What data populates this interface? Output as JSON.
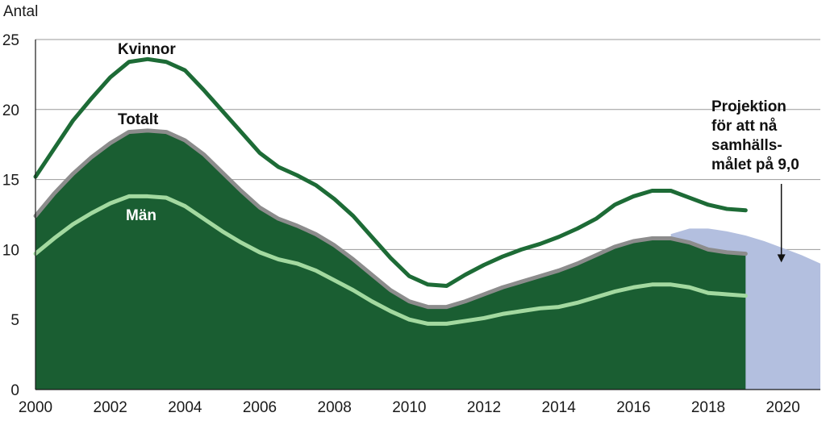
{
  "chart_data": {
    "type": "area",
    "ylabel": "Antal",
    "xlim": [
      2000,
      2021
    ],
    "ylim": [
      0,
      25
    ],
    "y_ticks": [
      0,
      5,
      10,
      15,
      20,
      25
    ],
    "x_ticks": [
      2000,
      2002,
      2004,
      2006,
      2008,
      2010,
      2012,
      2014,
      2016,
      2018,
      2020
    ],
    "grid": "horizontal",
    "colors": {
      "totalt_fill": "#1a5e32",
      "totalt_line": "#8c8c8c",
      "kvinnor_line": "#1d6b36",
      "man_line": "#a3d9a0",
      "projection_fill": "#b3bfdf",
      "grid": "#9a9a9a"
    },
    "series": [
      {
        "name": "Kvinnor",
        "x": [
          2000.0,
          2000.5,
          2001.0,
          2001.5,
          2002.0,
          2002.5,
          2003.0,
          2003.5,
          2004.0,
          2004.5,
          2005.0,
          2005.5,
          2006.0,
          2006.5,
          2007.0,
          2007.5,
          2008.0,
          2008.5,
          2009.0,
          2009.5,
          2010.0,
          2010.5,
          2011.0,
          2011.5,
          2012.0,
          2012.5,
          2013.0,
          2013.5,
          2014.0,
          2014.5,
          2015.0,
          2015.5,
          2016.0,
          2016.5,
          2017.0,
          2017.5,
          2018.0,
          2018.5,
          2019.0
        ],
        "values": [
          15.2,
          17.2,
          19.2,
          20.8,
          22.3,
          23.4,
          23.6,
          23.4,
          22.8,
          21.4,
          19.9,
          18.4,
          16.9,
          15.9,
          15.3,
          14.6,
          13.6,
          12.4,
          10.9,
          9.4,
          8.1,
          7.5,
          7.4,
          8.2,
          8.9,
          9.5,
          10.0,
          10.4,
          10.9,
          11.5,
          12.2,
          13.2,
          13.8,
          14.2,
          14.2,
          13.7,
          13.2,
          12.9,
          12.8
        ]
      },
      {
        "name": "Totalt",
        "x": [
          2000.0,
          2000.5,
          2001.0,
          2001.5,
          2002.0,
          2002.5,
          2003.0,
          2003.5,
          2004.0,
          2004.5,
          2005.0,
          2005.5,
          2006.0,
          2006.5,
          2007.0,
          2007.5,
          2008.0,
          2008.5,
          2009.0,
          2009.5,
          2010.0,
          2010.5,
          2011.0,
          2011.5,
          2012.0,
          2012.5,
          2013.0,
          2013.5,
          2014.0,
          2014.5,
          2015.0,
          2015.5,
          2016.0,
          2016.5,
          2017.0,
          2017.5,
          2018.0,
          2018.5,
          2019.0
        ],
        "values": [
          12.4,
          14.0,
          15.4,
          16.6,
          17.6,
          18.4,
          18.5,
          18.4,
          17.8,
          16.8,
          15.5,
          14.2,
          13.0,
          12.2,
          11.7,
          11.1,
          10.3,
          9.3,
          8.2,
          7.1,
          6.3,
          5.9,
          5.9,
          6.3,
          6.8,
          7.3,
          7.7,
          8.1,
          8.5,
          9.0,
          9.6,
          10.2,
          10.6,
          10.8,
          10.8,
          10.5,
          10.0,
          9.8,
          9.7
        ]
      },
      {
        "name": "Män",
        "x": [
          2000.0,
          2000.5,
          2001.0,
          2001.5,
          2002.0,
          2002.5,
          2003.0,
          2003.5,
          2004.0,
          2004.5,
          2005.0,
          2005.5,
          2006.0,
          2006.5,
          2007.0,
          2007.5,
          2008.0,
          2008.5,
          2009.0,
          2009.5,
          2010.0,
          2010.5,
          2011.0,
          2011.5,
          2012.0,
          2012.5,
          2013.0,
          2013.5,
          2014.0,
          2014.5,
          2015.0,
          2015.5,
          2016.0,
          2016.5,
          2017.0,
          2017.5,
          2018.0,
          2018.5,
          2019.0
        ],
        "values": [
          9.7,
          10.8,
          11.8,
          12.6,
          13.3,
          13.8,
          13.8,
          13.7,
          13.1,
          12.2,
          11.3,
          10.5,
          9.8,
          9.3,
          9.0,
          8.5,
          7.8,
          7.1,
          6.3,
          5.6,
          5.0,
          4.7,
          4.7,
          4.9,
          5.1,
          5.4,
          5.6,
          5.8,
          5.9,
          6.2,
          6.6,
          7.0,
          7.3,
          7.5,
          7.5,
          7.3,
          6.9,
          6.8,
          6.7
        ]
      },
      {
        "x": [
          2017.0,
          2017.5,
          2018.0,
          2018.5,
          2019.0,
          2019.5,
          2020.0,
          2020.5,
          2021.0
        ],
        "values": [
          11.1,
          11.5,
          11.5,
          11.3,
          11.0,
          10.6,
          10.1,
          9.6,
          9.0
        ]
      }
    ],
    "labels": {
      "kvinnor": "Kvinnor",
      "totalt": "Totalt",
      "man": "Män"
    },
    "annotation": {
      "lines": [
        "Projektion",
        "för att nå",
        "samhälls-",
        "målet på 9,0"
      ],
      "x": 2020.0,
      "y": 10.0
    }
  }
}
